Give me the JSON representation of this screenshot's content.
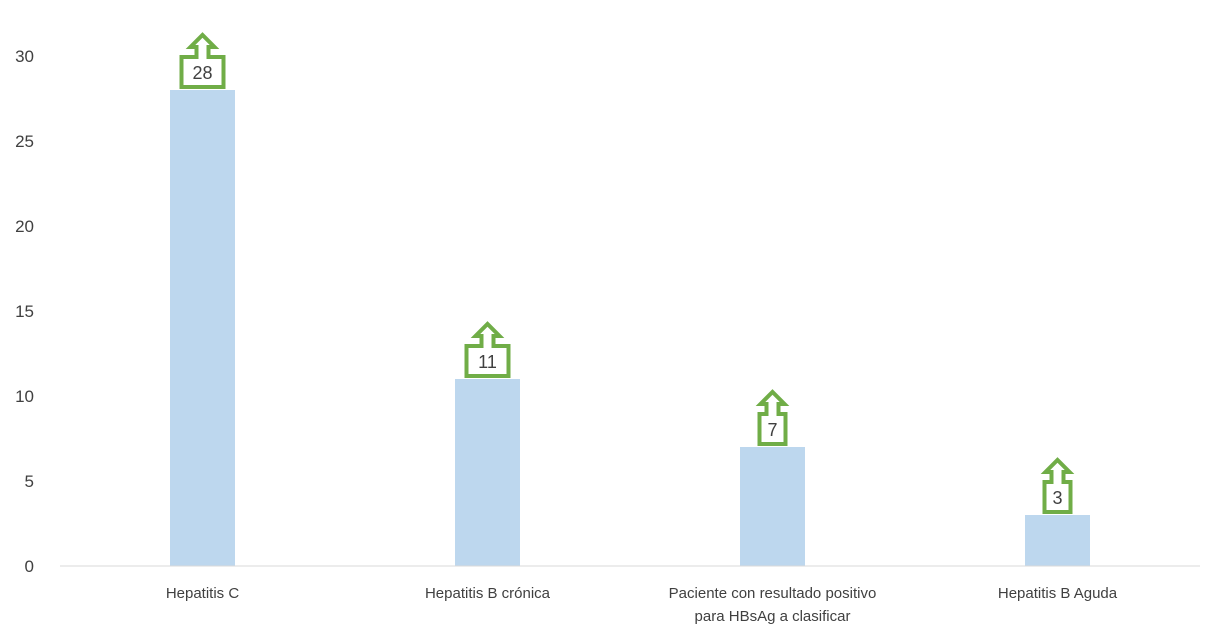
{
  "chart_data": {
    "type": "bar",
    "categories": [
      [
        "Hepatitis C"
      ],
      [
        "Hepatitis B crónica"
      ],
      [
        "Paciente con resultado positivo",
        "para HBsAg a clasificar"
      ],
      [
        "Hepatitis B Aguda"
      ]
    ],
    "values": [
      28,
      11,
      7,
      3
    ],
    "data_labels": [
      "28",
      "11",
      "7",
      "3"
    ],
    "yticks": [
      0,
      5,
      10,
      15,
      20,
      25,
      30
    ],
    "ylim": [
      0,
      30
    ],
    "grid": false,
    "legend": "none",
    "title": "",
    "xlabel": "",
    "ylabel": ""
  },
  "colors": {
    "bar": "#bdd7ee",
    "callout": "#70ad47",
    "axis": "#d9d9d9",
    "text": "#404040"
  },
  "icons": {
    "callout": "up-arrow-callout-icon"
  }
}
